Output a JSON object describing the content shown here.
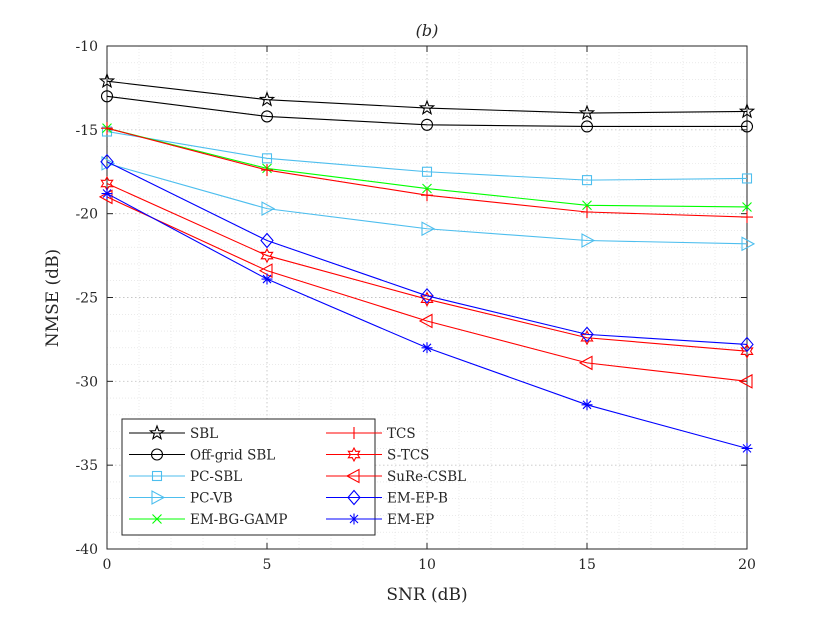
{
  "chart_data": {
    "type": "line",
    "title": "(b)",
    "xlabel": "SNR (dB)",
    "ylabel": "NMSE (dB)",
    "xlim": [
      0,
      20
    ],
    "ylim": [
      -40,
      -10
    ],
    "x": [
      0,
      5,
      10,
      15,
      20
    ],
    "xticks": [
      "0",
      "5",
      "10",
      "15",
      "20"
    ],
    "yticks": [
      "-10",
      "-15",
      "-20",
      "-25",
      "-30",
      "-35",
      "-40"
    ],
    "grid": "major and minor dotted",
    "legend_position": "bottom-left",
    "series": [
      {
        "name": "SBL",
        "color": "#000000",
        "marker": "star",
        "values": [
          -12.1,
          -13.2,
          -13.7,
          -14.0,
          -13.9
        ]
      },
      {
        "name": "Off-grid SBL",
        "color": "#000000",
        "marker": "circle",
        "values": [
          -13.0,
          -14.2,
          -14.7,
          -14.8,
          -14.8
        ]
      },
      {
        "name": "PC-SBL",
        "color": "#4DBEEE",
        "marker": "square",
        "values": [
          -15.1,
          -16.7,
          -17.5,
          -18.0,
          -17.9
        ]
      },
      {
        "name": "PC-VB",
        "color": "#4DBEEE",
        "marker": "triangle-right",
        "values": [
          -17.0,
          -19.7,
          -20.9,
          -21.6,
          -21.8
        ]
      },
      {
        "name": "EM-BG-GAMP",
        "color": "#00FF00",
        "marker": "x",
        "values": [
          -14.9,
          -17.3,
          -18.5,
          -19.5,
          -19.6
        ]
      },
      {
        "name": "TCS",
        "color": "#FF0000",
        "marker": "plus",
        "values": [
          -14.9,
          -17.4,
          -18.9,
          -19.9,
          -20.2
        ]
      },
      {
        "name": "S-TCS",
        "color": "#FF0000",
        "marker": "hexagram",
        "values": [
          -18.2,
          -22.5,
          -25.1,
          -27.4,
          -28.2
        ]
      },
      {
        "name": "SuRe-CSBL",
        "color": "#FF0000",
        "marker": "triangle-left",
        "values": [
          -19.0,
          -23.4,
          -26.4,
          -28.9,
          -30.0
        ]
      },
      {
        "name": "EM-EP-B",
        "color": "#0000FF",
        "marker": "diamond",
        "values": [
          -16.9,
          -21.6,
          -24.9,
          -27.2,
          -27.8
        ]
      },
      {
        "name": "EM-EP",
        "color": "#0000FF",
        "marker": "asterisk",
        "values": [
          -18.8,
          -23.9,
          -28.0,
          -31.4,
          -34.0
        ]
      }
    ]
  }
}
